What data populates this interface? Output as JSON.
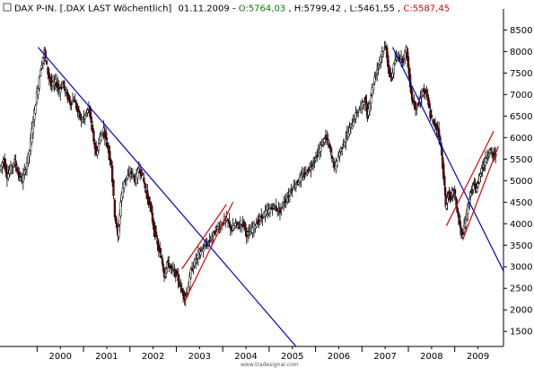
{
  "header": {
    "icon": "checkbox-icon",
    "instrument": "DAX P-IN. [.DAX LAST Wöchentlich]",
    "date": "01.11.2009",
    "open": "O:5764,03",
    "high": "H:5799,42",
    "low": "L:5461,55",
    "close": "C:5587,45",
    "colors": {
      "text": "#000000",
      "open": "#008000",
      "close": "#e00000"
    }
  },
  "watermark": "www.tradesignal.com",
  "chart_data": {
    "type": "candlestick",
    "title": "DAX P-IN. [.DAX LAST Wöchentlich]",
    "xlabel": "",
    "ylabel": "",
    "x_ticks": [
      "2000",
      "2001",
      "2002",
      "2003",
      "2004",
      "2005",
      "2006",
      "2007",
      "2008",
      "2009"
    ],
    "y_ticks": [
      1500,
      2000,
      2500,
      3000,
      3500,
      4000,
      4500,
      5000,
      5500,
      6000,
      6500,
      7000,
      7500,
      8000,
      8500
    ],
    "xlim": [
      1999.2,
      2010.05
    ],
    "ylim": [
      1150,
      8800
    ],
    "y_axis_position": "right",
    "grid": false,
    "candle_colors": {
      "body": "#000000",
      "accent": "#8b0000"
    },
    "series": [
      {
        "values_note": "weekly closing path (approximate, sampled)",
        "points": [
          [
            1999.22,
            5250
          ],
          [
            1999.3,
            5500
          ],
          [
            1999.38,
            5100
          ],
          [
            1999.46,
            5300
          ],
          [
            1999.54,
            5450
          ],
          [
            1999.62,
            5150
          ],
          [
            1999.7,
            5000
          ],
          [
            1999.78,
            5300
          ],
          [
            1999.86,
            5700
          ],
          [
            1999.94,
            6400
          ],
          [
            2000.02,
            7000
          ],
          [
            2000.1,
            7600
          ],
          [
            2000.18,
            8000
          ],
          [
            2000.26,
            7500
          ],
          [
            2000.34,
            7200
          ],
          [
            2000.42,
            7300
          ],
          [
            2000.5,
            7100
          ],
          [
            2000.58,
            7250
          ],
          [
            2000.66,
            7000
          ],
          [
            2000.74,
            6800
          ],
          [
            2000.82,
            6900
          ],
          [
            2000.9,
            6600
          ],
          [
            2000.98,
            6400
          ],
          [
            2001.06,
            6500
          ],
          [
            2001.14,
            6700
          ],
          [
            2001.22,
            6100
          ],
          [
            2001.3,
            5600
          ],
          [
            2001.38,
            6000
          ],
          [
            2001.46,
            6200
          ],
          [
            2001.54,
            5800
          ],
          [
            2001.62,
            5400
          ],
          [
            2001.7,
            4200
          ],
          [
            2001.76,
            3700
          ],
          [
            2001.82,
            4500
          ],
          [
            2001.9,
            5000
          ],
          [
            2001.98,
            5100
          ],
          [
            2002.06,
            5200
          ],
          [
            2002.14,
            5000
          ],
          [
            2002.22,
            5300
          ],
          [
            2002.3,
            5100
          ],
          [
            2002.38,
            4700
          ],
          [
            2002.46,
            4400
          ],
          [
            2002.54,
            3900
          ],
          [
            2002.62,
            3500
          ],
          [
            2002.7,
            3200
          ],
          [
            2002.76,
            2800
          ],
          [
            2002.82,
            3100
          ],
          [
            2002.88,
            3000
          ],
          [
            2002.96,
            2900
          ],
          [
            2003.04,
            2800
          ],
          [
            2003.12,
            2500
          ],
          [
            2003.2,
            2300
          ],
          [
            2003.26,
            2400
          ],
          [
            2003.34,
            2900
          ],
          [
            2003.42,
            3100
          ],
          [
            2003.5,
            3300
          ],
          [
            2003.58,
            3400
          ],
          [
            2003.66,
            3500
          ],
          [
            2003.74,
            3600
          ],
          [
            2003.82,
            3750
          ],
          [
            2003.9,
            3900
          ],
          [
            2003.98,
            3950
          ],
          [
            2004.06,
            4100
          ],
          [
            2004.14,
            4050
          ],
          [
            2004.22,
            3850
          ],
          [
            2004.3,
            4000
          ],
          [
            2004.38,
            3950
          ],
          [
            2004.46,
            4050
          ],
          [
            2004.54,
            3750
          ],
          [
            2004.62,
            3800
          ],
          [
            2004.7,
            3950
          ],
          [
            2004.78,
            4050
          ],
          [
            2004.86,
            4150
          ],
          [
            2004.94,
            4250
          ],
          [
            2005.02,
            4300
          ],
          [
            2005.1,
            4400
          ],
          [
            2005.18,
            4350
          ],
          [
            2005.26,
            4300
          ],
          [
            2005.34,
            4500
          ],
          [
            2005.42,
            4600
          ],
          [
            2005.5,
            4800
          ],
          [
            2005.58,
            4900
          ],
          [
            2005.66,
            5000
          ],
          [
            2005.74,
            5100
          ],
          [
            2005.82,
            5200
          ],
          [
            2005.9,
            5300
          ],
          [
            2005.98,
            5450
          ],
          [
            2006.06,
            5600
          ],
          [
            2006.14,
            5800
          ],
          [
            2006.22,
            6000
          ],
          [
            2006.3,
            5900
          ],
          [
            2006.38,
            5500
          ],
          [
            2006.44,
            5300
          ],
          [
            2006.52,
            5600
          ],
          [
            2006.6,
            5800
          ],
          [
            2006.68,
            6000
          ],
          [
            2006.76,
            6200
          ],
          [
            2006.84,
            6400
          ],
          [
            2006.92,
            6600
          ],
          [
            2007.0,
            6700
          ],
          [
            2007.08,
            6900
          ],
          [
            2007.14,
            6500
          ],
          [
            2007.22,
            7000
          ],
          [
            2007.3,
            7400
          ],
          [
            2007.38,
            7700
          ],
          [
            2007.46,
            8000
          ],
          [
            2007.54,
            8100
          ],
          [
            2007.6,
            7500
          ],
          [
            2007.66,
            7400
          ],
          [
            2007.74,
            7800
          ],
          [
            2007.82,
            7900
          ],
          [
            2007.9,
            7800
          ],
          [
            2007.98,
            8050
          ],
          [
            2008.04,
            7400
          ],
          [
            2008.1,
            6900
          ],
          [
            2008.18,
            6700
          ],
          [
            2008.26,
            6800
          ],
          [
            2008.34,
            7100
          ],
          [
            2008.42,
            7000
          ],
          [
            2008.5,
            6500
          ],
          [
            2008.58,
            6300
          ],
          [
            2008.66,
            6200
          ],
          [
            2008.72,
            5800
          ],
          [
            2008.78,
            5100
          ],
          [
            2008.82,
            4400
          ],
          [
            2008.88,
            4700
          ],
          [
            2008.94,
            4600
          ],
          [
            2009.0,
            4800
          ],
          [
            2009.06,
            4400
          ],
          [
            2009.12,
            4000
          ],
          [
            2009.18,
            3700
          ],
          [
            2009.24,
            4000
          ],
          [
            2009.3,
            4400
          ],
          [
            2009.36,
            4700
          ],
          [
            2009.42,
            4900
          ],
          [
            2009.48,
            4800
          ],
          [
            2009.54,
            5000
          ],
          [
            2009.6,
            5300
          ],
          [
            2009.66,
            5400
          ],
          [
            2009.72,
            5600
          ],
          [
            2009.78,
            5700
          ],
          [
            2009.84,
            5600
          ],
          [
            2009.9,
            5587
          ]
        ]
      }
    ],
    "trendlines": [
      {
        "name": "",
        "color": "#0000cc",
        "from": [
          2000.02,
          8100
        ],
        "to": [
          2005.58,
          1150
        ]
      },
      {
        "name": "",
        "color": "#0000cc",
        "from": [
          2007.66,
          8100
        ],
        "to": [
          2010.05,
          2900
        ]
      },
      {
        "name": "",
        "color": "#e00000",
        "from": [
          2003.18,
          2200
        ],
        "to": [
          2004.22,
          4500
        ]
      },
      {
        "name": "",
        "color": "#e00000",
        "from": [
          2003.12,
          2950
        ],
        "to": [
          2004.08,
          4450
        ]
      },
      {
        "name": "",
        "color": "#e00000",
        "from": [
          2009.18,
          3650
        ],
        "to": [
          2009.94,
          5800
        ]
      },
      {
        "name": "",
        "color": "#e00000",
        "from": [
          2008.82,
          3950
        ],
        "to": [
          2009.84,
          6150
        ]
      }
    ]
  }
}
